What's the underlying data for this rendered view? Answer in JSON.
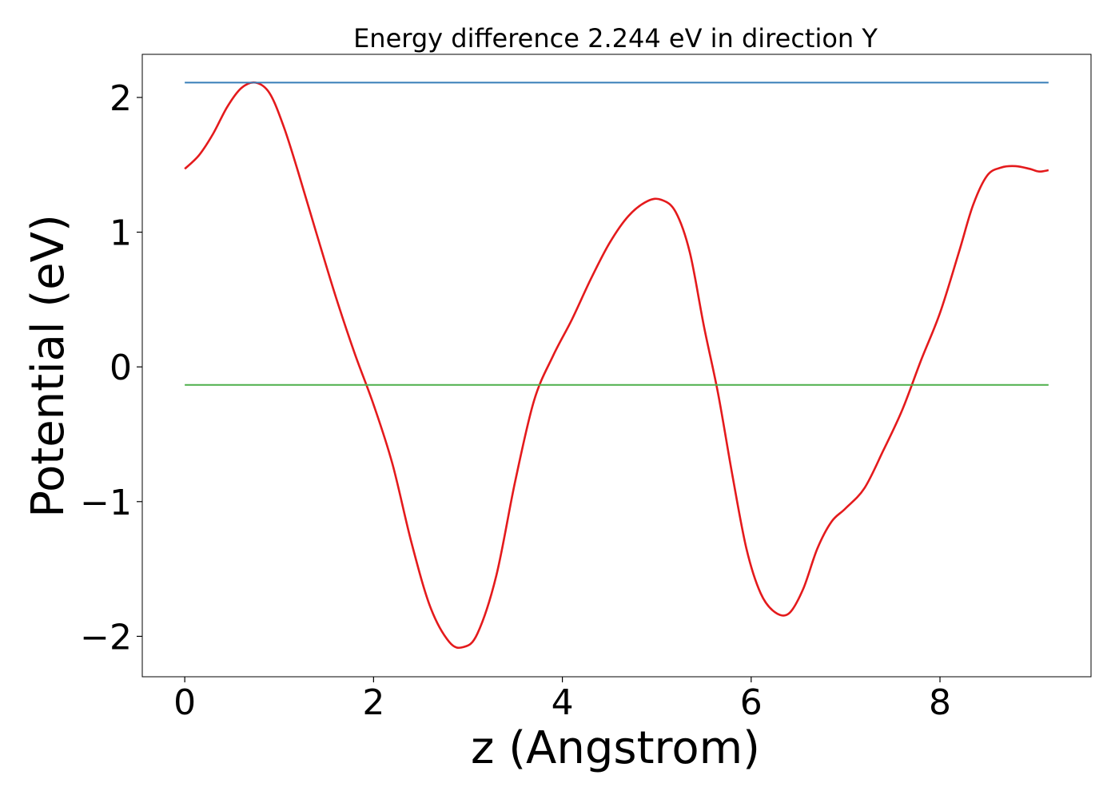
{
  "chart_data": {
    "type": "line",
    "title": "Energy difference 2.244 eV in direction Y",
    "xlabel": "z (Angstrom)",
    "ylabel": "Potential (eV)",
    "xlim": [
      -0.45,
      9.6
    ],
    "ylim": [
      -2.3,
      2.32
    ],
    "x_ticks": [
      0,
      2,
      4,
      6,
      8
    ],
    "x_tick_labels": [
      "0",
      "2",
      "4",
      "6",
      "8"
    ],
    "y_ticks": [
      -2,
      -1,
      0,
      1,
      2
    ],
    "y_tick_labels": [
      "−2",
      "−1",
      "0",
      "1",
      "2"
    ],
    "grid": false,
    "series": [
      {
        "color": "#e41a1c",
        "x": [
          0,
          0.15,
          0.3,
          0.45,
          0.6,
          0.75,
          0.9,
          1.05,
          1.2,
          1.4,
          1.6,
          1.8,
          2.0,
          2.2,
          2.4,
          2.6,
          2.8,
          2.95,
          3.1,
          3.3,
          3.5,
          3.7,
          3.9,
          4.1,
          4.3,
          4.5,
          4.7,
          4.9,
          5.05,
          5.2,
          5.35,
          5.5,
          5.65,
          5.8,
          5.95,
          6.1,
          6.25,
          6.4,
          6.55,
          6.7,
          6.85,
          7.0,
          7.2,
          7.4,
          7.6,
          7.8,
          8.0,
          8.2,
          8.35,
          8.5,
          8.65,
          8.8,
          8.95,
          9.05,
          9.15
        ],
        "y": [
          1.47,
          1.57,
          1.73,
          1.93,
          2.07,
          2.11,
          2.03,
          1.78,
          1.45,
          0.98,
          0.52,
          0.1,
          -0.28,
          -0.72,
          -1.3,
          -1.78,
          -2.04,
          -2.08,
          -1.98,
          -1.55,
          -0.85,
          -0.25,
          0.08,
          0.35,
          0.65,
          0.92,
          1.12,
          1.23,
          1.24,
          1.15,
          0.85,
          0.3,
          -0.2,
          -0.8,
          -1.35,
          -1.68,
          -1.82,
          -1.83,
          -1.65,
          -1.35,
          -1.15,
          -1.05,
          -0.9,
          -0.62,
          -0.32,
          0.05,
          0.4,
          0.85,
          1.2,
          1.42,
          1.48,
          1.49,
          1.47,
          1.45,
          1.46
        ]
      },
      {
        "color": "#377eb8",
        "x": [
          0,
          9.15
        ],
        "y": [
          2.11,
          2.11
        ]
      },
      {
        "color": "#4daf4a",
        "x": [
          0,
          9.15
        ],
        "y": [
          -0.134,
          -0.134
        ]
      }
    ]
  }
}
